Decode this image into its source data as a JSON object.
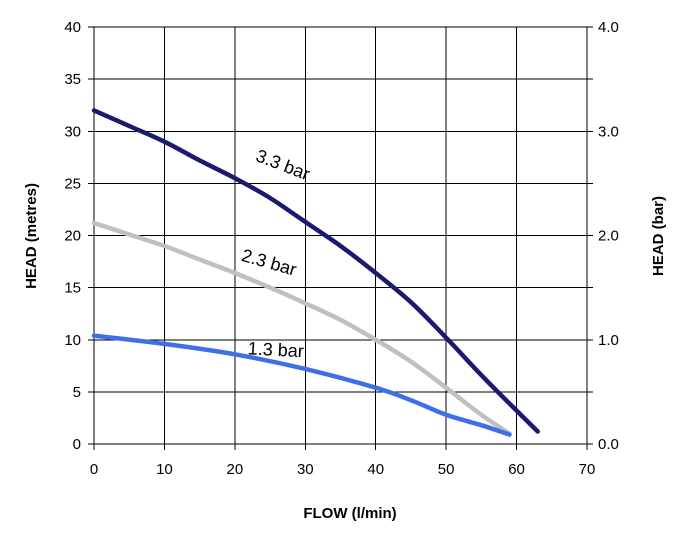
{
  "chart_data": {
    "type": "line",
    "xlabel": "FLOW (l/min)",
    "ylabel": "HEAD (metres)",
    "y2label": "HEAD (bar)",
    "xlim": [
      0,
      70
    ],
    "ylim": [
      0,
      40
    ],
    "y2lim": [
      0.0,
      4.0
    ],
    "x_ticks": [
      "0",
      "10",
      "20",
      "30",
      "40",
      "50",
      "60",
      "70"
    ],
    "y_ticks": [
      "0",
      "5",
      "10",
      "15",
      "20",
      "25",
      "30",
      "35",
      "40"
    ],
    "y2_ticks": [
      "0.0",
      "1.0",
      "2.0",
      "3.0",
      "4.0"
    ],
    "grid": true,
    "series": [
      {
        "name": "3.3 bar",
        "color": "#1a1a6e",
        "x": [
          0,
          5,
          10,
          15,
          20,
          25,
          30,
          35,
          40,
          45,
          50,
          55,
          60,
          63
        ],
        "y": [
          32,
          30.5,
          29,
          27.2,
          25.5,
          23.6,
          21.3,
          19,
          16.4,
          13.6,
          10.2,
          6.6,
          3.2,
          1.2
        ]
      },
      {
        "name": "2.3 bar",
        "color": "#c0c0c0",
        "x": [
          0,
          5,
          10,
          15,
          20,
          25,
          30,
          35,
          40,
          45,
          50,
          55,
          59
        ],
        "y": [
          21.2,
          20.1,
          19,
          17.7,
          16.4,
          15,
          13.5,
          11.9,
          10,
          7.9,
          5.4,
          2.8,
          1
        ]
      },
      {
        "name": "1.3 bar",
        "color": "#3f6fe8",
        "x": [
          0,
          10,
          20,
          30,
          40,
          45,
          50,
          55,
          59
        ],
        "y": [
          10.4,
          9.6,
          8.6,
          7.2,
          5.4,
          4.2,
          2.8,
          1.8,
          0.9
        ]
      }
    ]
  }
}
